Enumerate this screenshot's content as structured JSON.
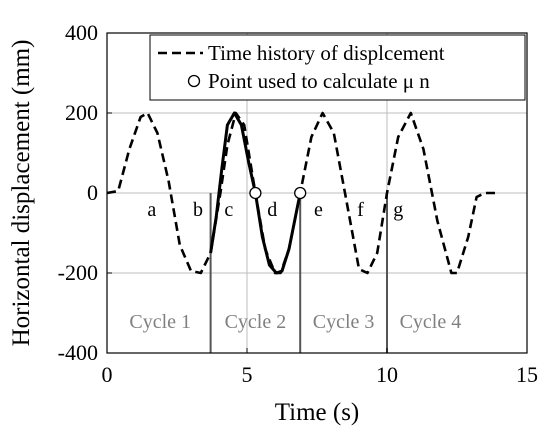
{
  "chart_data": {
    "type": "line",
    "title": "",
    "xlabel": "Time (s)",
    "ylabel": "Horizontal displacement  (mm)",
    "xlim": [
      0,
      15
    ],
    "ylim": [
      -400,
      400
    ],
    "x_ticks": [
      0,
      5,
      10,
      15
    ],
    "x_tick_labels": [
      "0",
      "5",
      "10",
      "15"
    ],
    "y_ticks": [
      -400,
      -200,
      0,
      200,
      400
    ],
    "y_tick_labels": [
      "-400",
      "-200",
      "0",
      "200",
      "400"
    ],
    "grid": true,
    "legend_position": "top-right",
    "legend": {
      "entries": [
        {
          "label": "Time history of displcement",
          "style": "dashed-line"
        },
        {
          "label": "Point used to calculate μ n",
          "style": "open-circle-marker"
        }
      ]
    },
    "series": [
      {
        "name": "Time history of displcement",
        "style": "dashed",
        "x": [
          0.0,
          0.4,
          0.8,
          1.2,
          1.45,
          1.8,
          2.2,
          2.6,
          3.0,
          3.35,
          3.7,
          4.05,
          4.3,
          4.6,
          4.9,
          5.3,
          5.65,
          6.0,
          6.2,
          6.5,
          6.9,
          7.3,
          7.7,
          8.1,
          8.5,
          9.0,
          9.3,
          9.65,
          10.0,
          10.4,
          10.85,
          11.3,
          11.8,
          12.3,
          12.5,
          12.9,
          13.2,
          13.5,
          14.0
        ],
        "y": [
          0,
          5,
          110,
          190,
          200,
          150,
          30,
          -130,
          -195,
          -200,
          -150,
          0,
          120,
          200,
          170,
          0,
          -140,
          -200,
          -200,
          -140,
          0,
          140,
          200,
          150,
          0,
          -190,
          -200,
          -150,
          0,
          140,
          200,
          110,
          -70,
          -200,
          -200,
          -110,
          -10,
          0,
          0
        ]
      },
      {
        "name": "",
        "style": "solid",
        "x": [
          3.7,
          3.9,
          4.1,
          4.3,
          4.55,
          4.8,
          5.05,
          5.3,
          5.55,
          5.8,
          6.05,
          6.25,
          6.5,
          6.7,
          6.9
        ],
        "y": [
          -150,
          -60,
          60,
          170,
          200,
          170,
          80,
          0,
          -110,
          -180,
          -200,
          -195,
          -140,
          -70,
          0
        ]
      }
    ],
    "markers": [
      {
        "x": 5.3,
        "y": 0
      },
      {
        "x": 6.9,
        "y": 0
      }
    ],
    "cycle_boundaries_x": [
      3.7,
      6.9,
      10.0
    ],
    "annotations": [
      {
        "text": "a",
        "x": 1.6,
        "y": -40
      },
      {
        "text": "b",
        "x": 3.25,
        "y": -40
      },
      {
        "text": "c",
        "x": 4.35,
        "y": -40
      },
      {
        "text": "d",
        "x": 5.9,
        "y": -40
      },
      {
        "text": "e",
        "x": 7.55,
        "y": -40
      },
      {
        "text": "f",
        "x": 9.05,
        "y": -40
      },
      {
        "text": "g",
        "x": 10.4,
        "y": -40
      }
    ],
    "cycle_labels": [
      {
        "text": "Cycle 1",
        "x_center": 1.9,
        "y": -320
      },
      {
        "text": "Cycle 2",
        "x_center": 5.3,
        "y": -320
      },
      {
        "text": "Cycle 3",
        "x_center": 8.45,
        "y": -320
      },
      {
        "text": "Cycle 4",
        "x_center": 11.55,
        "y": -320
      }
    ]
  }
}
